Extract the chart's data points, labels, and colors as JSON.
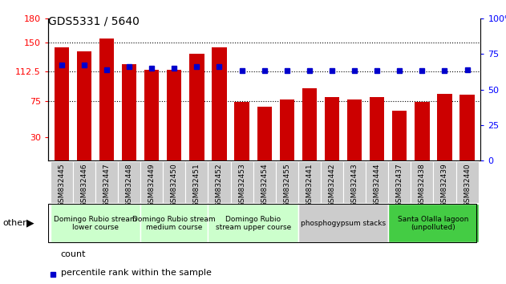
{
  "title": "GDS5331 / 5640",
  "categories": [
    "GSM832445",
    "GSM832446",
    "GSM832447",
    "GSM832448",
    "GSM832449",
    "GSM832450",
    "GSM832451",
    "GSM832452",
    "GSM832453",
    "GSM832454",
    "GSM832455",
    "GSM832441",
    "GSM832442",
    "GSM832443",
    "GSM832444",
    "GSM832437",
    "GSM832438",
    "GSM832439",
    "GSM832440"
  ],
  "bar_values": [
    143,
    138,
    155,
    122,
    115,
    115,
    135,
    143,
    74,
    68,
    77,
    92,
    80,
    77,
    80,
    63,
    74,
    84,
    83
  ],
  "dot_values": [
    67,
    67,
    64,
    66,
    65,
    65,
    66,
    66,
    63,
    63,
    63,
    63,
    63,
    63,
    63,
    63,
    63,
    63,
    64
  ],
  "bar_color": "#cc0000",
  "dot_color": "#0000cc",
  "ylim_left": [
    0,
    180
  ],
  "ylim_right": [
    0,
    100
  ],
  "yticks_left": [
    30,
    75,
    112.5,
    150,
    180
  ],
  "ytick_labels_left": [
    "30",
    "75",
    "112.5",
    "150",
    "180"
  ],
  "yticks_right": [
    0,
    25,
    50,
    75,
    100
  ],
  "ytick_labels_right": [
    "0",
    "25",
    "50",
    "75",
    "100%"
  ],
  "grid_values": [
    75,
    112.5,
    150
  ],
  "groups": [
    {
      "label": "Domingo Rubio stream\nlower course",
      "start": 0,
      "end": 3,
      "color": "#ccffcc"
    },
    {
      "label": "Domingo Rubio stream\nmedium course",
      "start": 4,
      "end": 6,
      "color": "#ccffcc"
    },
    {
      "label": "Domingo Rubio\nstream upper course",
      "start": 7,
      "end": 10,
      "color": "#ccffcc"
    },
    {
      "label": "phosphogypsum stacks",
      "start": 11,
      "end": 14,
      "color": "#cccccc"
    },
    {
      "label": "Santa Olalla lagoon\n(unpolluted)",
      "start": 15,
      "end": 18,
      "color": "#44cc44"
    }
  ],
  "legend_count_label": "count",
  "legend_pct_label": "percentile rank within the sample",
  "other_label": "other",
  "bg_color": "#ffffff",
  "plot_bg_color": "#ffffff",
  "tick_label_bg": "#cccccc"
}
